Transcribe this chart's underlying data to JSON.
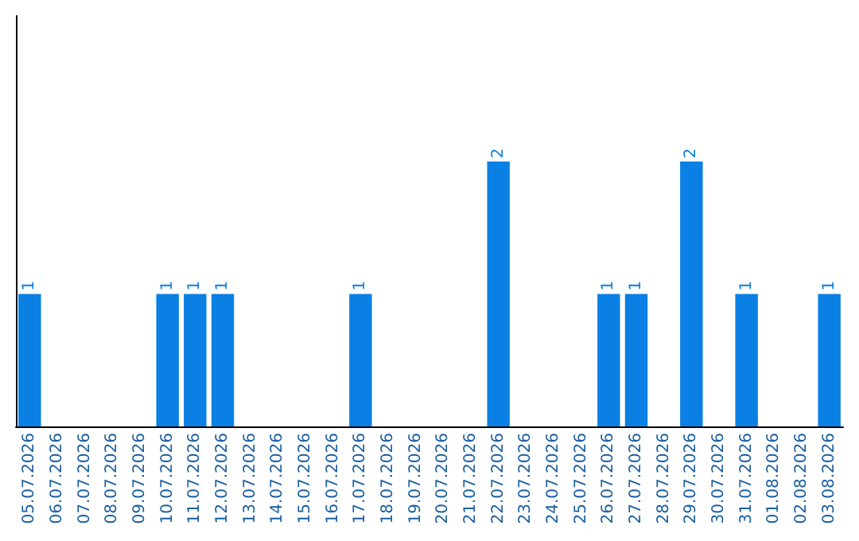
{
  "chart_data": {
    "type": "bar",
    "categories": [
      "05.07.2026",
      "06.07.2026",
      "07.07.2026",
      "08.07.2026",
      "09.07.2026",
      "10.07.2026",
      "11.07.2026",
      "12.07.2026",
      "13.07.2026",
      "14.07.2026",
      "15.07.2026",
      "16.07.2026",
      "17.07.2026",
      "18.07.2026",
      "19.07.2026",
      "20.07.2026",
      "21.07.2026",
      "22.07.2026",
      "23.07.2026",
      "24.07.2026",
      "25.07.2026",
      "26.07.2026",
      "27.07.2026",
      "28.07.2026",
      "29.07.2026",
      "30.07.2026",
      "31.07.2026",
      "01.08.2026",
      "02.08.2026",
      "03.08.2026"
    ],
    "values": [
      1,
      0,
      0,
      0,
      0,
      1,
      1,
      1,
      0,
      0,
      0,
      0,
      1,
      0,
      0,
      0,
      0,
      2,
      0,
      0,
      0,
      1,
      1,
      0,
      2,
      0,
      1,
      0,
      0,
      1
    ],
    "value_labels": [
      "1",
      null,
      null,
      null,
      null,
      "1",
      "1",
      "1",
      null,
      null,
      null,
      null,
      "1",
      null,
      null,
      null,
      null,
      "2",
      null,
      null,
      null,
      "1",
      "1",
      null,
      "2",
      null,
      "1",
      null,
      null,
      "1"
    ],
    "color": "#0a80e4",
    "ylim": [
      0,
      3.1
    ],
    "tick_labels": "x",
    "grid": false
  }
}
